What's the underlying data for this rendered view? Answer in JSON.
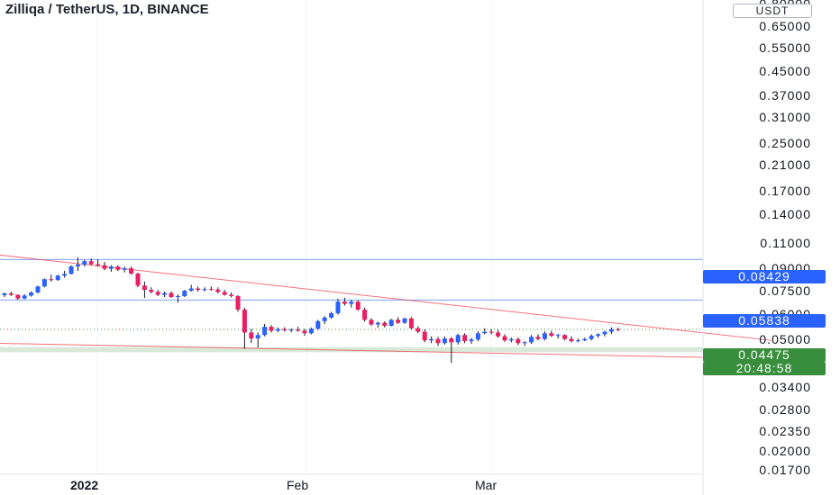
{
  "header": {
    "title": "Zilliqa / TetherUS, 1D, BINANCE"
  },
  "y_axis": {
    "unit": "USDT",
    "ticks": [
      "0.80000",
      "0.65000",
      "0.55000",
      "0.45000",
      "0.37000",
      "0.31000",
      "0.25000",
      "0.21000",
      "0.17000",
      "0.14000",
      "0.11000",
      "0.09000",
      "0.07500",
      "0.06000",
      "0.05000",
      "0.03400",
      "0.02800",
      "0.02350",
      "0.02000",
      "0.01700"
    ]
  },
  "x_axis": {
    "ticks": [
      "2022",
      "Feb",
      "Mar"
    ]
  },
  "price_labels": {
    "level1": "0.08429",
    "level2": "0.05838",
    "current": "0.04475",
    "countdown": "20:48:58"
  },
  "colors": {
    "up": "#2962ff",
    "down": "#e91e63",
    "level_line": "#2962ff",
    "trend_line": "#f23645",
    "current_label": "#388e3c",
    "support_zone": "#c8dfc8"
  },
  "chart_data": {
    "type": "candlestick",
    "title": "Zilliqa / TetherUS, 1D, BINANCE",
    "y_scale": "log",
    "y_unit": "USDT",
    "ylim": [
      0.0165,
      0.82
    ],
    "x_tick_labels": [
      "2022",
      "Feb",
      "Mar"
    ],
    "candles": [
      [
        0.061,
        0.0625,
        0.06,
        0.062
      ],
      [
        0.062,
        0.063,
        0.0605,
        0.0612
      ],
      [
        0.0612,
        0.0615,
        0.0585,
        0.0592
      ],
      [
        0.0592,
        0.0615,
        0.0588,
        0.0608
      ],
      [
        0.0608,
        0.0632,
        0.0602,
        0.0625
      ],
      [
        0.0625,
        0.0665,
        0.062,
        0.066
      ],
      [
        0.066,
        0.071,
        0.0655,
        0.0705
      ],
      [
        0.0705,
        0.0735,
        0.069,
        0.07
      ],
      [
        0.07,
        0.0735,
        0.0695,
        0.0728
      ],
      [
        0.0728,
        0.076,
        0.0715,
        0.074
      ],
      [
        0.074,
        0.08,
        0.0735,
        0.0792
      ],
      [
        0.0792,
        0.086,
        0.076,
        0.0805
      ],
      [
        0.0805,
        0.084,
        0.079,
        0.083
      ],
      [
        0.083,
        0.085,
        0.08,
        0.0808
      ],
      [
        0.0808,
        0.0845,
        0.079,
        0.08
      ],
      [
        0.08,
        0.0825,
        0.0765,
        0.0775
      ],
      [
        0.0775,
        0.08,
        0.0755,
        0.079
      ],
      [
        0.079,
        0.08,
        0.076,
        0.0768
      ],
      [
        0.0768,
        0.079,
        0.075,
        0.0778
      ],
      [
        0.0778,
        0.079,
        0.0735,
        0.0742
      ],
      [
        0.0742,
        0.0748,
        0.0655,
        0.0665
      ],
      [
        0.0665,
        0.069,
        0.0595,
        0.064
      ],
      [
        0.064,
        0.0655,
        0.062,
        0.0628
      ],
      [
        0.0628,
        0.064,
        0.0605,
        0.0612
      ],
      [
        0.0612,
        0.063,
        0.06,
        0.0622
      ],
      [
        0.0622,
        0.063,
        0.0595,
        0.06
      ],
      [
        0.06,
        0.0615,
        0.057,
        0.0605
      ],
      [
        0.0605,
        0.064,
        0.06,
        0.0635
      ],
      [
        0.0635,
        0.067,
        0.063,
        0.0648
      ],
      [
        0.0648,
        0.066,
        0.063,
        0.064
      ],
      [
        0.064,
        0.0655,
        0.063,
        0.0645
      ],
      [
        0.0645,
        0.066,
        0.0635,
        0.0642
      ],
      [
        0.0642,
        0.0655,
        0.062,
        0.0628
      ],
      [
        0.0628,
        0.064,
        0.0608,
        0.0612
      ],
      [
        0.0612,
        0.0625,
        0.0598,
        0.0605
      ],
      [
        0.0605,
        0.061,
        0.0525,
        0.0535
      ],
      [
        0.0535,
        0.0545,
        0.0375,
        0.0435
      ],
      [
        0.0435,
        0.045,
        0.0395,
        0.0412
      ],
      [
        0.0412,
        0.0435,
        0.038,
        0.0425
      ],
      [
        0.0425,
        0.047,
        0.042,
        0.0458
      ],
      [
        0.0458,
        0.0465,
        0.0435,
        0.0442
      ],
      [
        0.0442,
        0.0455,
        0.0436,
        0.0449
      ],
      [
        0.0449,
        0.0456,
        0.0438,
        0.0444
      ],
      [
        0.0444,
        0.0452,
        0.0436,
        0.0447
      ],
      [
        0.0447,
        0.0458,
        0.0438,
        0.0442
      ],
      [
        0.0442,
        0.045,
        0.0422,
        0.0432
      ],
      [
        0.0432,
        0.0455,
        0.0428,
        0.045
      ],
      [
        0.045,
        0.0488,
        0.0445,
        0.0482
      ],
      [
        0.0482,
        0.0505,
        0.047,
        0.0498
      ],
      [
        0.0498,
        0.0525,
        0.0492,
        0.0518
      ],
      [
        0.0518,
        0.059,
        0.0512,
        0.0575
      ],
      [
        0.0575,
        0.0596,
        0.0555,
        0.0564
      ],
      [
        0.0564,
        0.0585,
        0.0545,
        0.0575
      ],
      [
        0.0575,
        0.0582,
        0.053,
        0.0535
      ],
      [
        0.0535,
        0.0545,
        0.048,
        0.0488
      ],
      [
        0.0488,
        0.0495,
        0.0462,
        0.0468
      ],
      [
        0.0468,
        0.048,
        0.0455,
        0.0475
      ],
      [
        0.0475,
        0.0482,
        0.0455,
        0.0462
      ],
      [
        0.0462,
        0.0492,
        0.046,
        0.0488
      ],
      [
        0.0488,
        0.05,
        0.047,
        0.0475
      ],
      [
        0.0475,
        0.0498,
        0.047,
        0.0494
      ],
      [
        0.0494,
        0.05,
        0.0448,
        0.0452
      ],
      [
        0.0452,
        0.046,
        0.0432,
        0.0438
      ],
      [
        0.0438,
        0.0448,
        0.0398,
        0.0405
      ],
      [
        0.0405,
        0.042,
        0.0395,
        0.041
      ],
      [
        0.041,
        0.0418,
        0.0385,
        0.0395
      ],
      [
        0.0395,
        0.042,
        0.039,
        0.0412
      ],
      [
        0.0412,
        0.0418,
        0.033,
        0.0398
      ],
      [
        0.0398,
        0.043,
        0.039,
        0.0425
      ],
      [
        0.0425,
        0.0432,
        0.0395,
        0.0402
      ],
      [
        0.0402,
        0.0415,
        0.0392,
        0.0408
      ],
      [
        0.0408,
        0.044,
        0.0402,
        0.0432
      ],
      [
        0.0432,
        0.0452,
        0.0428,
        0.0438
      ],
      [
        0.0438,
        0.0448,
        0.0428,
        0.0435
      ],
      [
        0.0435,
        0.0445,
        0.0415,
        0.042
      ],
      [
        0.042,
        0.0428,
        0.04,
        0.0405
      ],
      [
        0.0405,
        0.0415,
        0.0398,
        0.041
      ],
      [
        0.041,
        0.0415,
        0.0388,
        0.0395
      ],
      [
        0.0395,
        0.0402,
        0.0385,
        0.0398
      ],
      [
        0.0398,
        0.0425,
        0.0392,
        0.0418
      ],
      [
        0.0418,
        0.0428,
        0.0405,
        0.041
      ],
      [
        0.041,
        0.044,
        0.0405,
        0.0432
      ],
      [
        0.0432,
        0.0442,
        0.0418,
        0.0422
      ],
      [
        0.0422,
        0.043,
        0.0412,
        0.0425
      ],
      [
        0.0425,
        0.0428,
        0.0405,
        0.041
      ],
      [
        0.041,
        0.042,
        0.0398,
        0.0402
      ],
      [
        0.0402,
        0.0412,
        0.0398,
        0.0405
      ],
      [
        0.0405,
        0.0415,
        0.0402,
        0.041
      ],
      [
        0.041,
        0.0428,
        0.0405,
        0.0422
      ],
      [
        0.0422,
        0.0432,
        0.0415,
        0.0428
      ],
      [
        0.0428,
        0.0442,
        0.042,
        0.0438
      ],
      [
        0.0438,
        0.0455,
        0.043,
        0.0448
      ],
      [
        0.0448,
        0.0455,
        0.044,
        0.0447
      ]
    ],
    "horizontal_levels": [
      0.08429,
      0.05838
    ],
    "current_price": 0.04475,
    "support_zone": [
      0.0364,
      0.0381
    ],
    "trend_lines": [
      {
        "from": {
          "bar": -2,
          "price": 0.0885
        },
        "to": {
          "bar": 115,
          "price": 0.0405
        }
      },
      {
        "from": {
          "bar": -2,
          "price": 0.0395
        },
        "to": {
          "bar": 115,
          "price": 0.0343
        }
      }
    ]
  }
}
